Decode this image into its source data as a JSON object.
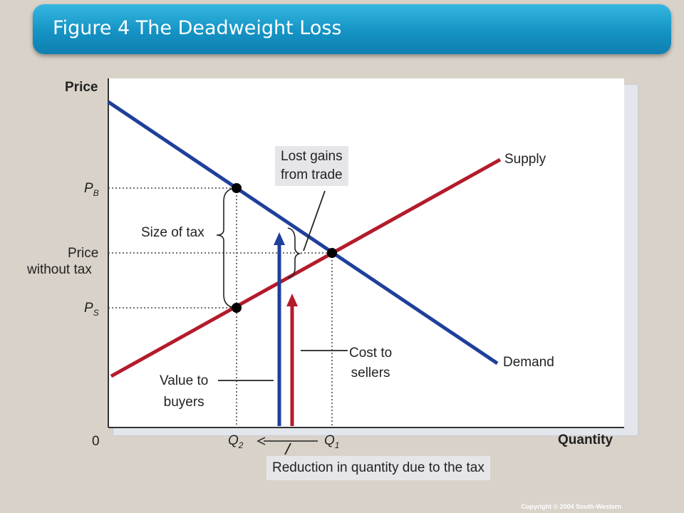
{
  "title": "Figure 4 The Deadweight Loss",
  "axes": {
    "y_label": "Price",
    "x_label": "Quantity",
    "origin": "0"
  },
  "price_levels": {
    "pb_main": "P",
    "pb_sub": "B",
    "ps_main": "P",
    "ps_sub": "S",
    "no_tax_line1": "Price",
    "no_tax_line2": "without tax"
  },
  "quantities": {
    "q2_main": "Q",
    "q2_sub": "2",
    "q1_main": "Q",
    "q1_sub": "1"
  },
  "curves": {
    "supply": "Supply",
    "demand": "Demand"
  },
  "annotations": {
    "lost_gains_line1": "Lost gains",
    "lost_gains_line2": "from trade",
    "size_of_tax": "Size of tax",
    "cost_line1": "Cost to",
    "cost_line2": "sellers",
    "value_line1": "Value to",
    "value_line2": "buyers",
    "reduction": "Reduction in quantity due to the tax"
  },
  "colors": {
    "demand": "#1f3f9b",
    "supply": "#b31b2b",
    "title_bar": "#1a9bd0"
  },
  "copyright": "Copyright © 2004  South-Western"
}
